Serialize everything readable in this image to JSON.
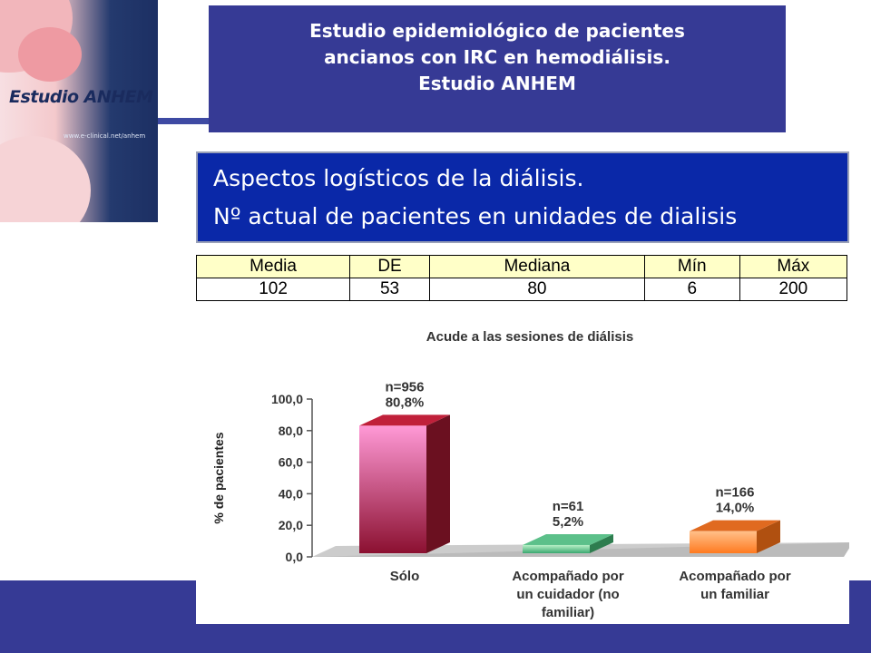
{
  "logo": {
    "text": "Estudio ANHEM",
    "url": "www.e-clinical.net/anhem"
  },
  "title": {
    "lines": [
      "Estudio epidemiológico de pacientes",
      "ancianos con IRC en hemodiálisis.",
      "Estudio ANHEM"
    ]
  },
  "subtitle": {
    "lines": [
      "Aspectos logísticos de la diálisis.",
      "Nº actual de pacientes en unidades de dialisis"
    ]
  },
  "stats_table": {
    "headers": [
      "Media",
      "DE",
      "Mediana",
      "Mín",
      "Máx"
    ],
    "values": [
      "102",
      "53",
      "80",
      "6",
      "200"
    ]
  },
  "colors": {
    "title_bg": "#363a95",
    "subtitle_bg": "#0a28a8",
    "table_header_bg": "#ffffc8"
  },
  "chart_data": {
    "type": "bar",
    "title": "Acude a las sesiones de diálisis",
    "ylabel": "% de pacientes",
    "xlabel": "",
    "ylim": [
      0,
      100
    ],
    "yticks": [
      "0,0",
      "20,0",
      "40,0",
      "60,0",
      "80,0",
      "100,0"
    ],
    "categories": [
      [
        "Sólo"
      ],
      [
        "Acompañado por",
        "un cuidador (no",
        "familiar)"
      ],
      [
        "Acompañado por",
        "un familiar"
      ]
    ],
    "values": [
      80.8,
      5.2,
      14.0
    ],
    "data_labels": [
      [
        "n=956",
        "80,8%"
      ],
      [
        "n=61",
        "5,2%"
      ],
      [
        "n=166",
        "14,0%"
      ]
    ],
    "bar_colors": [
      {
        "front_top": "#ff99d6",
        "front_bottom": "#8b1030",
        "side": "#6b1020",
        "top": "#c0203a"
      },
      {
        "front_top": "#b9f0c8",
        "front_bottom": "#3aa870",
        "side": "#2e7d4f",
        "top": "#5cc08a"
      },
      {
        "front_top": "#ffc08a",
        "front_bottom": "#ff7a20",
        "side": "#b05010",
        "top": "#e06a20"
      }
    ],
    "grid": false
  }
}
